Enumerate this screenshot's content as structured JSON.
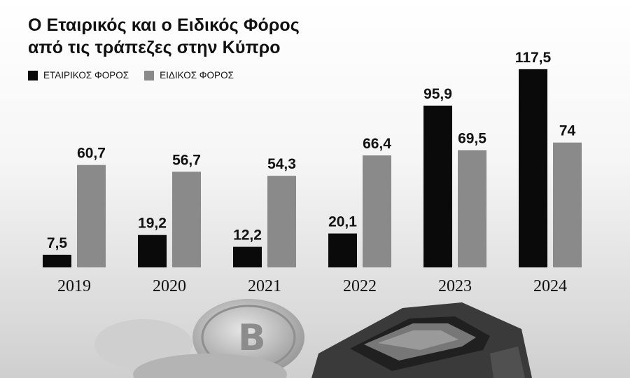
{
  "header": {
    "title_line_1": "Ο Εταιρικός και ο Ειδικός Φόρος",
    "title_line_2": "από τις τράπεζες στην Κύπρο"
  },
  "legend": [
    {
      "label": "ΕΤΑΙΡΙΚΟΣ ΦΟΡΟΣ",
      "color": "#0a0a0a"
    },
    {
      "label": "ΕΙΔΙΚΟΣ ΦΟΡΟΣ",
      "color": "#8a8a8a"
    }
  ],
  "chart_data": {
    "type": "bar",
    "title": "Ο Εταιρικός και ο Ειδικός Φόρος από τις τράπεζες στην Κύπρο",
    "categories": [
      "2019",
      "2020",
      "2021",
      "2022",
      "2023",
      "2024"
    ],
    "series": [
      {
        "name": "ΕΤΑΙΡΙΚΟΣ ΦΟΡΟΣ",
        "color": "#0a0a0a",
        "values": [
          7.5,
          19.2,
          12.2,
          20.1,
          95.9,
          117.5
        ],
        "labels": [
          "7,5",
          "19,2",
          "12,2",
          "20,1",
          "95,9",
          "117,5"
        ]
      },
      {
        "name": "ΕΙΔΙΚΟΣ ΦΟΡΟΣ",
        "color": "#8a8a8a",
        "values": [
          60.7,
          56.7,
          54.3,
          66.4,
          69.5,
          74
        ],
        "labels": [
          "60,7",
          "56,7",
          "54,3",
          "66,4",
          "69,5",
          "74"
        ]
      }
    ],
    "legend_position": "top-left",
    "grid": false
  }
}
